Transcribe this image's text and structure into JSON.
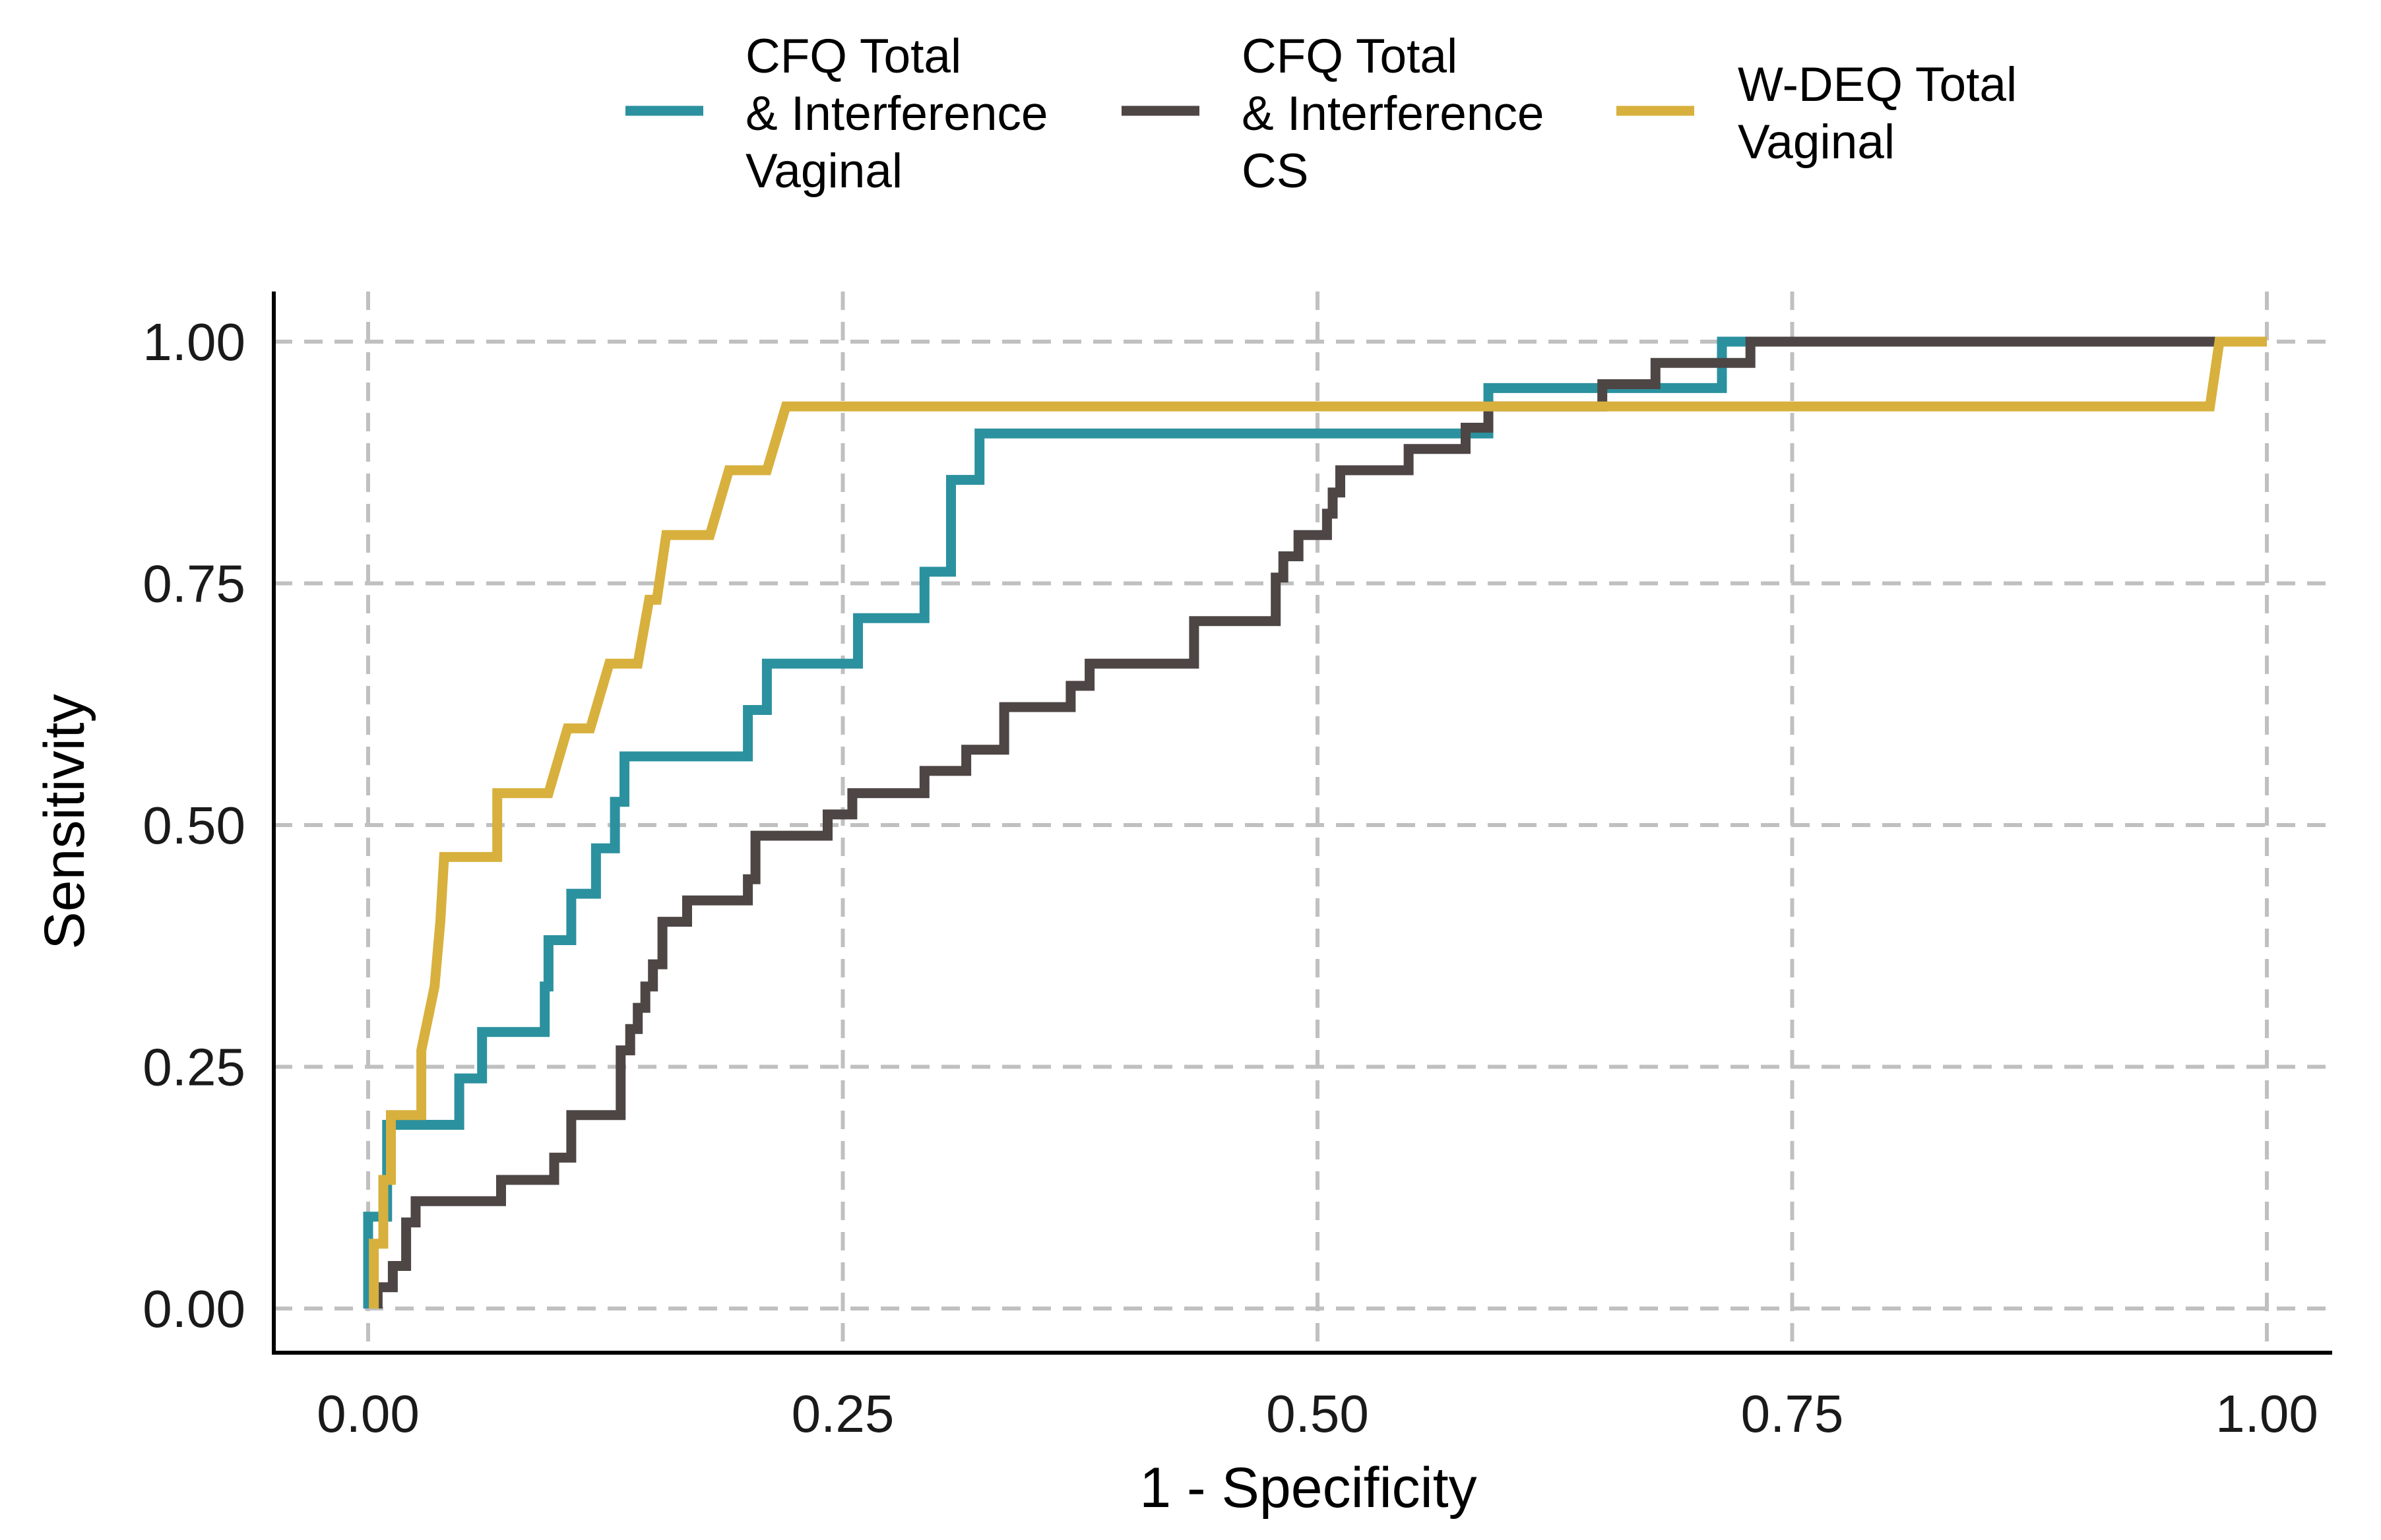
{
  "chart_data": {
    "type": "line",
    "title": "",
    "xlabel": "1 - Specificity",
    "ylabel": "Sensitivity",
    "xlim": [
      0,
      1
    ],
    "ylim": [
      0,
      1
    ],
    "x_ticks": [
      0,
      0.25,
      0.5,
      0.75,
      1
    ],
    "y_ticks": [
      0,
      0.25,
      0.5,
      0.75,
      1
    ],
    "x_tick_labels": [
      "0.00",
      "0.25",
      "0.50",
      "0.75",
      "1.00"
    ],
    "y_tick_labels": [
      "0.00",
      "0.25",
      "0.50",
      "0.75",
      "1.00"
    ],
    "grid": true,
    "grid_style": "dashed",
    "legend_position": "top",
    "series": [
      {
        "name": "CFQ Total & Interference Vaginal",
        "legend_lines": [
          "CFQ Total",
          "& Interference",
          "Vaginal"
        ],
        "color": "#2b919f",
        "points": [
          [
            0,
            0
          ],
          [
            0,
            0.095
          ],
          [
            0.01,
            0.095
          ],
          [
            0.01,
            0.19
          ],
          [
            0.048,
            0.19
          ],
          [
            0.048,
            0.238
          ],
          [
            0.06,
            0.238
          ],
          [
            0.06,
            0.286
          ],
          [
            0.093,
            0.286
          ],
          [
            0.093,
            0.333
          ],
          [
            0.095,
            0.333
          ],
          [
            0.095,
            0.381
          ],
          [
            0.107,
            0.381
          ],
          [
            0.107,
            0.429
          ],
          [
            0.12,
            0.429
          ],
          [
            0.12,
            0.476
          ],
          [
            0.13,
            0.476
          ],
          [
            0.13,
            0.524
          ],
          [
            0.135,
            0.524
          ],
          [
            0.135,
            0.571
          ],
          [
            0.2,
            0.571
          ],
          [
            0.2,
            0.619
          ],
          [
            0.21,
            0.619
          ],
          [
            0.21,
            0.667
          ],
          [
            0.258,
            0.667
          ],
          [
            0.258,
            0.714
          ],
          [
            0.293,
            0.714
          ],
          [
            0.293,
            0.762
          ],
          [
            0.307,
            0.762
          ],
          [
            0.307,
            0.857
          ],
          [
            0.322,
            0.857
          ],
          [
            0.322,
            0.905
          ],
          [
            0.59,
            0.905
          ],
          [
            0.59,
            0.952
          ],
          [
            0.713,
            0.952
          ],
          [
            0.713,
            1
          ],
          [
            1,
            1
          ]
        ]
      },
      {
        "name": "CFQ Total & Interference CS",
        "legend_lines": [
          "CFQ Total",
          "& Interference",
          "CS"
        ],
        "color": "#4d4644",
        "points": [
          [
            0.005,
            0
          ],
          [
            0.005,
            0.022
          ],
          [
            0.013,
            0.022
          ],
          [
            0.013,
            0.044
          ],
          [
            0.02,
            0.044
          ],
          [
            0.02,
            0.089
          ],
          [
            0.025,
            0.089
          ],
          [
            0.025,
            0.111
          ],
          [
            0.07,
            0.111
          ],
          [
            0.07,
            0.133
          ],
          [
            0.098,
            0.133
          ],
          [
            0.098,
            0.156
          ],
          [
            0.107,
            0.156
          ],
          [
            0.107,
            0.2
          ],
          [
            0.133,
            0.2
          ],
          [
            0.133,
            0.267
          ],
          [
            0.138,
            0.267
          ],
          [
            0.138,
            0.289
          ],
          [
            0.142,
            0.289
          ],
          [
            0.142,
            0.311
          ],
          [
            0.146,
            0.311
          ],
          [
            0.146,
            0.333
          ],
          [
            0.15,
            0.333
          ],
          [
            0.15,
            0.356
          ],
          [
            0.155,
            0.356
          ],
          [
            0.155,
            0.4
          ],
          [
            0.168,
            0.4
          ],
          [
            0.168,
            0.422
          ],
          [
            0.2,
            0.422
          ],
          [
            0.2,
            0.444
          ],
          [
            0.204,
            0.444
          ],
          [
            0.204,
            0.489
          ],
          [
            0.242,
            0.489
          ],
          [
            0.242,
            0.511
          ],
          [
            0.255,
            0.511
          ],
          [
            0.255,
            0.533
          ],
          [
            0.293,
            0.533
          ],
          [
            0.293,
            0.556
          ],
          [
            0.315,
            0.556
          ],
          [
            0.315,
            0.578
          ],
          [
            0.335,
            0.578
          ],
          [
            0.335,
            0.622
          ],
          [
            0.37,
            0.622
          ],
          [
            0.37,
            0.644
          ],
          [
            0.38,
            0.644
          ],
          [
            0.38,
            0.667
          ],
          [
            0.435,
            0.667
          ],
          [
            0.435,
            0.711
          ],
          [
            0.478,
            0.711
          ],
          [
            0.478,
            0.756
          ],
          [
            0.482,
            0.756
          ],
          [
            0.482,
            0.778
          ],
          [
            0.49,
            0.778
          ],
          [
            0.49,
            0.8
          ],
          [
            0.505,
            0.8
          ],
          [
            0.505,
            0.822
          ],
          [
            0.508,
            0.822
          ],
          [
            0.508,
            0.844
          ],
          [
            0.512,
            0.844
          ],
          [
            0.512,
            0.867
          ],
          [
            0.548,
            0.867
          ],
          [
            0.548,
            0.889
          ],
          [
            0.578,
            0.889
          ],
          [
            0.578,
            0.911
          ],
          [
            0.59,
            0.911
          ],
          [
            0.59,
            0.933
          ],
          [
            0.65,
            0.933
          ],
          [
            0.65,
            0.956
          ],
          [
            0.678,
            0.956
          ],
          [
            0.678,
            0.978
          ],
          [
            0.728,
            0.978
          ],
          [
            0.728,
            1
          ],
          [
            1,
            1
          ]
        ]
      },
      {
        "name": "W-DEQ Total Vaginal",
        "legend_lines": [
          "W-DEQ Total",
          "Vaginal"
        ],
        "color": "#d8b03d",
        "points": [
          [
            0.003,
            0
          ],
          [
            0.003,
            0.067
          ],
          [
            0.008,
            0.067
          ],
          [
            0.008,
            0.133
          ],
          [
            0.012,
            0.133
          ],
          [
            0.012,
            0.2
          ],
          [
            0.028,
            0.2
          ],
          [
            0.028,
            0.267
          ],
          [
            0.035,
            0.333
          ],
          [
            0.038,
            0.4
          ],
          [
            0.04,
            0.467
          ],
          [
            0.068,
            0.467
          ],
          [
            0.068,
            0.533
          ],
          [
            0.095,
            0.533
          ],
          [
            0.105,
            0.6
          ],
          [
            0.117,
            0.6
          ],
          [
            0.127,
            0.667
          ],
          [
            0.142,
            0.667
          ],
          [
            0.148,
            0.733
          ],
          [
            0.152,
            0.733
          ],
          [
            0.157,
            0.8
          ],
          [
            0.18,
            0.8
          ],
          [
            0.19,
            0.867
          ],
          [
            0.21,
            0.867
          ],
          [
            0.22,
            0.933
          ],
          [
            0.97,
            0.933
          ],
          [
            0.975,
            1
          ],
          [
            1,
            1
          ]
        ]
      }
    ]
  }
}
